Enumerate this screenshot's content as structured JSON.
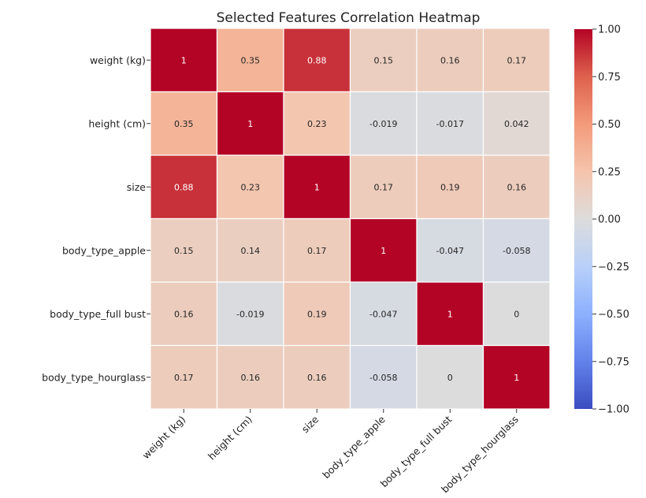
{
  "chart_data": {
    "type": "heatmap",
    "title": "Selected Features Correlation Heatmap",
    "xlabel": "",
    "ylabel": "",
    "categories": [
      "weight (kg)",
      "height (cm)",
      "size",
      "body_type_apple",
      "body_type_full bust",
      "body_type_hourglass"
    ],
    "matrix": [
      [
        1,
        0.35,
        0.88,
        0.15,
        0.16,
        0.17
      ],
      [
        0.35,
        1,
        0.23,
        -0.019,
        -0.017,
        0.042
      ],
      [
        0.88,
        0.23,
        1,
        0.17,
        0.19,
        0.16
      ],
      [
        0.15,
        0.14,
        0.17,
        1,
        -0.047,
        -0.058
      ],
      [
        0.16,
        -0.019,
        0.19,
        -0.047,
        1,
        0
      ],
      [
        0.17,
        0.16,
        0.16,
        -0.058,
        0,
        1
      ]
    ],
    "annotations": [
      [
        "1",
        "0.35",
        "0.88",
        "0.15",
        "0.16",
        "0.17"
      ],
      [
        "0.35",
        "1",
        "0.23",
        "-0.019",
        "-0.017",
        "0.042"
      ],
      [
        "0.88",
        "0.23",
        "1",
        "0.17",
        "0.19",
        "0.16"
      ],
      [
        "0.15",
        "0.14",
        "0.17",
        "1",
        "-0.047",
        "-0.058"
      ],
      [
        "0.16",
        "-0.019",
        "0.19",
        "-0.047",
        "1",
        "0"
      ],
      [
        "0.17",
        "0.16",
        "0.16",
        "-0.058",
        "0",
        "1"
      ]
    ],
    "colormap": "coolwarm",
    "vmin": -1,
    "vmax": 1,
    "colorbar_ticks": [
      "1.00",
      "0.75",
      "0.50",
      "0.25",
      "0.00",
      "−0.25",
      "−0.50",
      "−0.75",
      "−1.00"
    ],
    "colorbar_values": [
      1,
      0.75,
      0.5,
      0.25,
      0,
      -0.25,
      -0.5,
      -0.75,
      -1
    ],
    "x_tick_rotation": "45°",
    "legend": "colorbar-right"
  }
}
